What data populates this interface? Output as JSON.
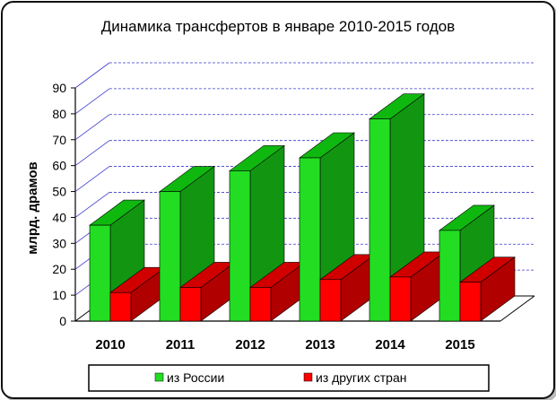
{
  "chart_data": {
    "type": "bar",
    "title": "Динамика трансфертов в январе 2010-2015 годов",
    "ylabel": "млрд. драмов",
    "xlabel": "",
    "categories": [
      "2010",
      "2011",
      "2012",
      "2013",
      "2014",
      "2015"
    ],
    "series": [
      {
        "name": "из России",
        "values": [
          37,
          50,
          58,
          63,
          78,
          35
        ]
      },
      {
        "name": "из других стран",
        "values": [
          11,
          13,
          13,
          16,
          17,
          15
        ]
      }
    ],
    "ylim": [
      0,
      90
    ],
    "yticks": [
      "0",
      "10",
      "20",
      "30",
      "40",
      "50",
      "60",
      "70",
      "80",
      "90"
    ],
    "grid": true,
    "legend_position": "bottom",
    "colors": {
      "front": [
        "#22dd22",
        "#ff0000"
      ],
      "side": [
        "#129612",
        "#b00000"
      ],
      "top": [
        "#0fb80f",
        "#d00000"
      ]
    }
  }
}
